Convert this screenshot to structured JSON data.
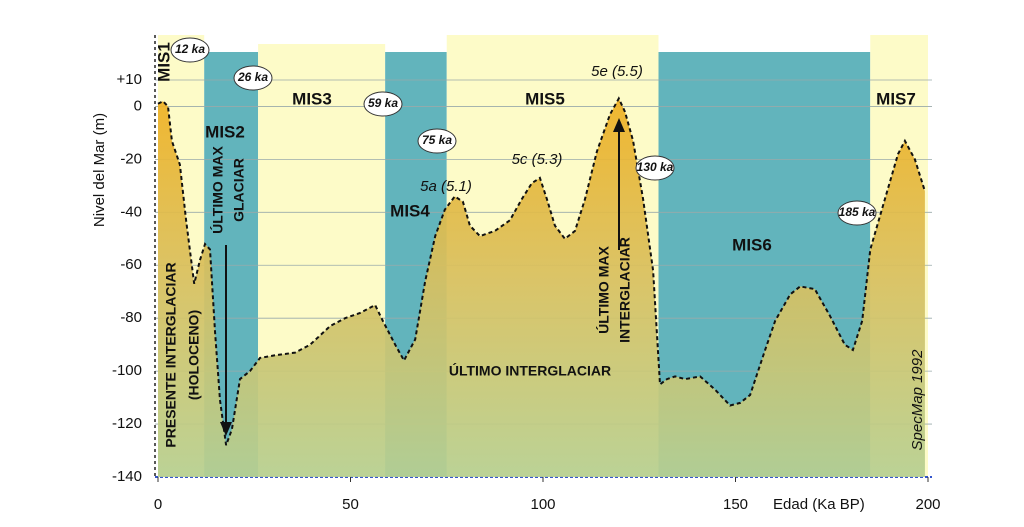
{
  "chart_data": {
    "type": "area",
    "ylabel": "Nivel del Mar (m)",
    "xlabel": "Edad (Ka BP)",
    "xlim": [
      0,
      200
    ],
    "ylim": [
      -140,
      27
    ],
    "xticks": [
      0,
      50,
      100,
      150,
      200
    ],
    "yticks": [
      {
        "value": 10,
        "label": "+10"
      },
      0,
      -20,
      -40,
      -60,
      -80,
      -100,
      -120,
      -140
    ],
    "grid": true,
    "color": "#f2b01e",
    "x": [
      0,
      1.3,
      2.6,
      3.6,
      5.7,
      7.3,
      9.4,
      10.9,
      12.2,
      13.5,
      14.8,
      16.1,
      17.7,
      19.2,
      21.3,
      23.9,
      26.5,
      30.4,
      35.6,
      39.5,
      44.7,
      48.6,
      52.5,
      56.4,
      58.4,
      61.6,
      63.9,
      66.8,
      69.4,
      72,
      74.5,
      77.1,
      79.2,
      81,
      83.6,
      87.5,
      91.4,
      94.5,
      97.1,
      99.2,
      101,
      103.1,
      105.7,
      108.3,
      110.9,
      114,
      117.4,
      119.7,
      121.3,
      123.4,
      126,
      128.6,
      130.4,
      132.2,
      134.3,
      136.9,
      140.8,
      144.7,
      148.6,
      151.2,
      153.8,
      157.7,
      160.3,
      164.2,
      166.8,
      170.6,
      174.5,
      178.4,
      180.5,
      182.9,
      185,
      188.8,
      192.2,
      194,
      196.6,
      199.2
    ],
    "values": [
      1,
      2,
      0,
      -13,
      -22,
      -43,
      -67,
      -58,
      -52,
      -54,
      -85,
      -111,
      -128,
      -122,
      -103,
      -100,
      -95,
      -94,
      -93,
      -90,
      -83,
      -80,
      -78,
      -75,
      -81,
      -90,
      -96,
      -88,
      -66,
      -49,
      -39,
      -34,
      -36,
      -45,
      -49,
      -47,
      -43,
      -35,
      -29,
      -27,
      -35,
      -45,
      -50,
      -47,
      -35,
      -17,
      -3,
      3,
      -2,
      -13,
      -35,
      -62,
      -105,
      -103,
      -102,
      -103,
      -102,
      -107,
      -113,
      -112,
      -109,
      -92,
      -81,
      -71,
      -68,
      -69,
      -79,
      -90,
      -92,
      -81,
      -54,
      -35,
      -18,
      -13,
      -20,
      -32
    ],
    "boundaries": [
      {
        "value": 12,
        "label": "12 ka"
      },
      {
        "value": 26,
        "label": "26 ka"
      },
      {
        "value": 59,
        "label": "59 ka"
      },
      {
        "value": 75,
        "label": "75 ka"
      },
      {
        "value": 130,
        "label": "130 ka"
      },
      {
        "value": 185,
        "label": "185 ka"
      }
    ],
    "stages": [
      {
        "name": "MIS1",
        "color": "#fdfbc8"
      },
      {
        "name": "MIS2",
        "color": "#62b4bc"
      },
      {
        "name": "MIS3",
        "color": "#fdfbc8"
      },
      {
        "name": "MIS4",
        "color": "#62b4bc"
      },
      {
        "name": "MIS5",
        "color": "#fdfbc8"
      },
      {
        "name": "MIS6",
        "color": "#62b4bc"
      },
      {
        "name": "MIS7",
        "color": "#fdfbc8"
      }
    ],
    "annotations": [
      "5e (5.5)",
      "5c (5.3)",
      "5a (5.1)",
      "ÚLTIMO INTERGLACIAR",
      "ÚLTIMO MAX",
      "GLACIAR",
      "ÚLTIMO MAX",
      "INTERGLACIAR",
      "PRESENTE INTERGLACIAR",
      "(HOLOCENO)",
      "SpecMap 1992"
    ]
  }
}
